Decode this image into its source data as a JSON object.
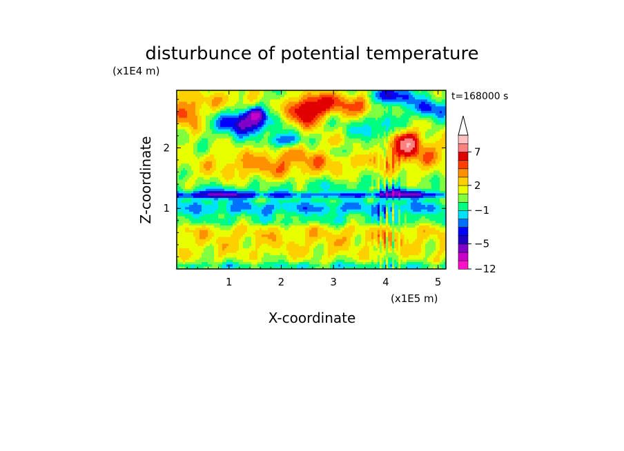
{
  "chart_data": {
    "type": "heatmap",
    "title": "disturbunce of potential temperature",
    "time_label": "t=168000 s",
    "xlabel": "X-coordinate",
    "ylabel": "Z-coordinate",
    "x_unit": "(x1E5 m)",
    "y_unit": "(x1E4 m)",
    "xlim": [
      0,
      5.15
    ],
    "ylim": [
      0,
      2.95
    ],
    "x_ticks": [
      1,
      2,
      3,
      4,
      5
    ],
    "y_ticks": [
      1,
      2
    ],
    "colorbar": {
      "levels": [
        -12,
        -9,
        -7,
        -5,
        -4,
        -3,
        -2,
        -1,
        0,
        1,
        2,
        3,
        4,
        5,
        7,
        9
      ],
      "colors": [
        "#ff10c8",
        "#c800c8",
        "#8000c8",
        "#2000c0",
        "#0000ff",
        "#0070ff",
        "#00e0ff",
        "#00ff80",
        "#80ff40",
        "#e8ff00",
        "#ffd000",
        "#ff9000",
        "#ff4000",
        "#e00000",
        "#ff8080",
        "#ffc0c0"
      ],
      "tick_labels": [
        "-12",
        "-5",
        "-1",
        "2",
        "7"
      ],
      "extend": "max"
    }
  }
}
